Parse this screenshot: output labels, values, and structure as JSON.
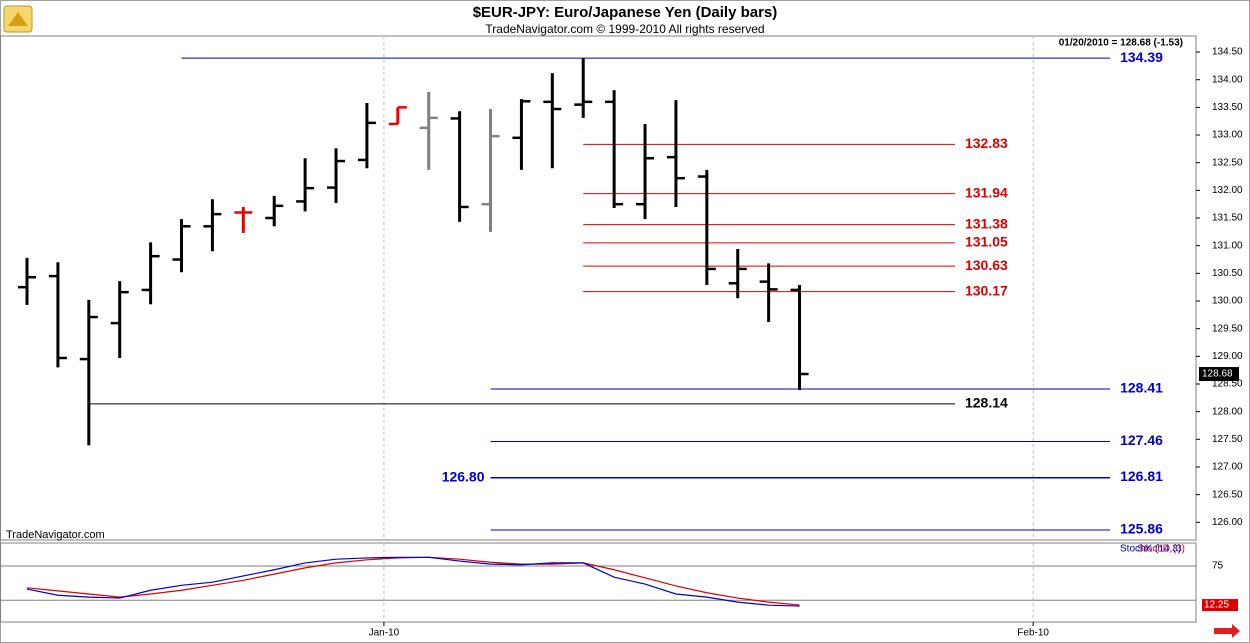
{
  "header": {
    "title": "$EUR-JPY:  Euro/Japanese Yen  (Daily bars)",
    "subtitle": "TradeNavigator.com © 1999-2010 All rights reserved",
    "info": "01/20/2010 = 128.68 (-1.53)",
    "watermark": "TradeNavigator.com"
  },
  "chart_data": [
    {
      "type": "ohlc",
      "categories": [
        null,
        null,
        null,
        null,
        null,
        null,
        null,
        null,
        null,
        null,
        null,
        null,
        null,
        null,
        null,
        null,
        null,
        null,
        null,
        null,
        null,
        null,
        null,
        null,
        null,
        null
      ],
      "open": [
        130.25,
        130.45,
        128.95,
        129.6,
        130.2,
        130.75,
        131.35,
        131.6,
        131.5,
        131.8,
        132.05,
        132.55,
        133.2,
        133.13,
        133.3,
        131.75,
        132.95,
        133.6,
        133.55,
        133.6,
        131.75,
        132.6,
        132.25,
        130.32,
        130.35,
        130.2
      ],
      "high": [
        130.78,
        130.7,
        130.02,
        130.36,
        131.06,
        131.48,
        131.84,
        131.7,
        131.9,
        132.58,
        132.76,
        133.58,
        133.5,
        133.78,
        133.43,
        133.47,
        133.65,
        134.12,
        134.39,
        133.81,
        133.2,
        133.63,
        132.37,
        130.94,
        130.68,
        130.29
      ],
      "low": [
        129.93,
        128.8,
        127.39,
        128.97,
        129.94,
        130.52,
        130.9,
        131.23,
        131.35,
        131.62,
        131.77,
        132.4,
        133.2,
        132.37,
        131.43,
        131.25,
        132.37,
        132.4,
        133.31,
        131.68,
        131.48,
        131.7,
        130.29,
        130.05,
        129.62,
        128.39
      ],
      "close": [
        130.43,
        128.97,
        129.71,
        130.16,
        130.81,
        131.35,
        131.57,
        131.6,
        131.72,
        132.04,
        132.53,
        133.22,
        133.5,
        133.31,
        131.7,
        132.98,
        133.61,
        133.47,
        133.6,
        131.75,
        132.58,
        132.22,
        130.58,
        130.58,
        130.21,
        128.68
      ],
      "colors": [
        "#000000",
        "#000000",
        "#000000",
        "#000000",
        "#000000",
        "#000000",
        "#000000",
        "#ee0000",
        "#000000",
        "#000000",
        "#000000",
        "#000000",
        "#ee0000",
        "#808080",
        "#000000",
        "#808080",
        "#000000",
        "#000000",
        "#000000",
        "#000000",
        "#000000",
        "#000000",
        "#000000",
        "#000000",
        "#000000",
        "#000000"
      ],
      "xlim": [
        -0.874,
        37.83
      ],
      "ylim": [
        125.68,
        134.79
      ],
      "yticks": [
        {
          "value": 126,
          "label": "126.00"
        },
        {
          "value": 126.5,
          "label": "126.50"
        },
        {
          "value": 127,
          "label": "127.00"
        },
        {
          "value": 127.5,
          "label": "127.50"
        },
        {
          "value": 128,
          "label": "128.00"
        },
        {
          "value": 128.5,
          "label": "128.50"
        },
        {
          "value": 129,
          "label": "129.00"
        },
        {
          "value": 129.5,
          "label": "129.50"
        },
        {
          "value": 130,
          "label": "130.00"
        },
        {
          "value": 130.5,
          "label": "130.50"
        },
        {
          "value": 131,
          "label": "131.00"
        },
        {
          "value": 131.5,
          "label": "131.50"
        },
        {
          "value": 132,
          "label": "132.00"
        },
        {
          "value": 132.5,
          "label": "132.50"
        },
        {
          "value": 133,
          "label": "133.00"
        },
        {
          "value": 133.5,
          "label": "133.50"
        },
        {
          "value": 134,
          "label": "134.00"
        },
        {
          "value": 134.5,
          "label": "134.50"
        }
      ],
      "levels": [
        {
          "value": 134.39,
          "label": "134.39",
          "color": "#0000cc",
          "start": 5,
          "end": 35.05,
          "label_side": "right"
        },
        {
          "value": 132.83,
          "label": "132.83",
          "color": "#dd0000",
          "start": 18,
          "end": 30.03,
          "label_side": "right"
        },
        {
          "value": 131.94,
          "label": "131.94",
          "color": "#dd0000",
          "start": 18,
          "end": 30.03,
          "label_side": "right"
        },
        {
          "value": 131.38,
          "label": "131.38",
          "color": "#dd0000",
          "start": 18,
          "end": 30.03,
          "label_side": "right"
        },
        {
          "value": 131.05,
          "label": "131.05",
          "color": "#dd0000",
          "start": 18,
          "end": 30.03,
          "label_side": "right"
        },
        {
          "value": 130.63,
          "label": "130.63",
          "color": "#dd0000",
          "start": 18,
          "end": 30.03,
          "label_side": "right"
        },
        {
          "value": 130.17,
          "label": "130.17",
          "color": "#dd0000",
          "start": 18,
          "end": 30.03,
          "label_side": "right"
        },
        {
          "value": 128.41,
          "label": "128.41",
          "color": "#0000cc",
          "start": 15,
          "end": 35.05,
          "label_side": "right"
        },
        {
          "value": 128.14,
          "label": "128.14",
          "color": "#000000",
          "start": 2,
          "end": 30.03,
          "label_side": "right"
        },
        {
          "value": 127.46,
          "label": "127.46",
          "color": "#0000cc",
          "start": 15,
          "end": 35.05,
          "label_side": "right"
        },
        {
          "value": 126.8,
          "label": "126.80",
          "color": "#0000cc",
          "start": 15,
          "end": 35.05,
          "label_side": "left"
        },
        {
          "value": 126.81,
          "label": "126.81",
          "color": "#0000cc",
          "start": 15,
          "end": 35.05,
          "label_side": "right"
        },
        {
          "value": 125.86,
          "label": "125.86",
          "color": "#0000cc",
          "start": 15,
          "end": 35.05,
          "label_side": "right"
        }
      ]
    },
    {
      "type": "line",
      "xlim": [
        -0.874,
        37.83
      ],
      "ylim": [
        -15,
        112
      ],
      "yticks": [
        75
      ],
      "guide_lines": [
        20
      ],
      "xticks": [
        {
          "value": 11.55,
          "label": "Jan-10"
        },
        {
          "value": 32.56,
          "label": "Feb-10"
        }
      ],
      "series": [
        {
          "name": "StochD (3)",
          "color": "#dd0000",
          "values": [
            40,
            35,
            30,
            25,
            30,
            36,
            44,
            52,
            62,
            72,
            80,
            85,
            88,
            89,
            86,
            81,
            78,
            78,
            80,
            69,
            56,
            43,
            32,
            23.5,
            17,
            12.25
          ]
        },
        {
          "name": "StochK (14,3)",
          "color": "#0000cc",
          "values": [
            38,
            28,
            25,
            23.5,
            36,
            44,
            49,
            59,
            69,
            80,
            86,
            88,
            89,
            89,
            83,
            78,
            77,
            80,
            80,
            57,
            46,
            30,
            25,
            17,
            12,
            10.6
          ]
        }
      ]
    }
  ]
}
